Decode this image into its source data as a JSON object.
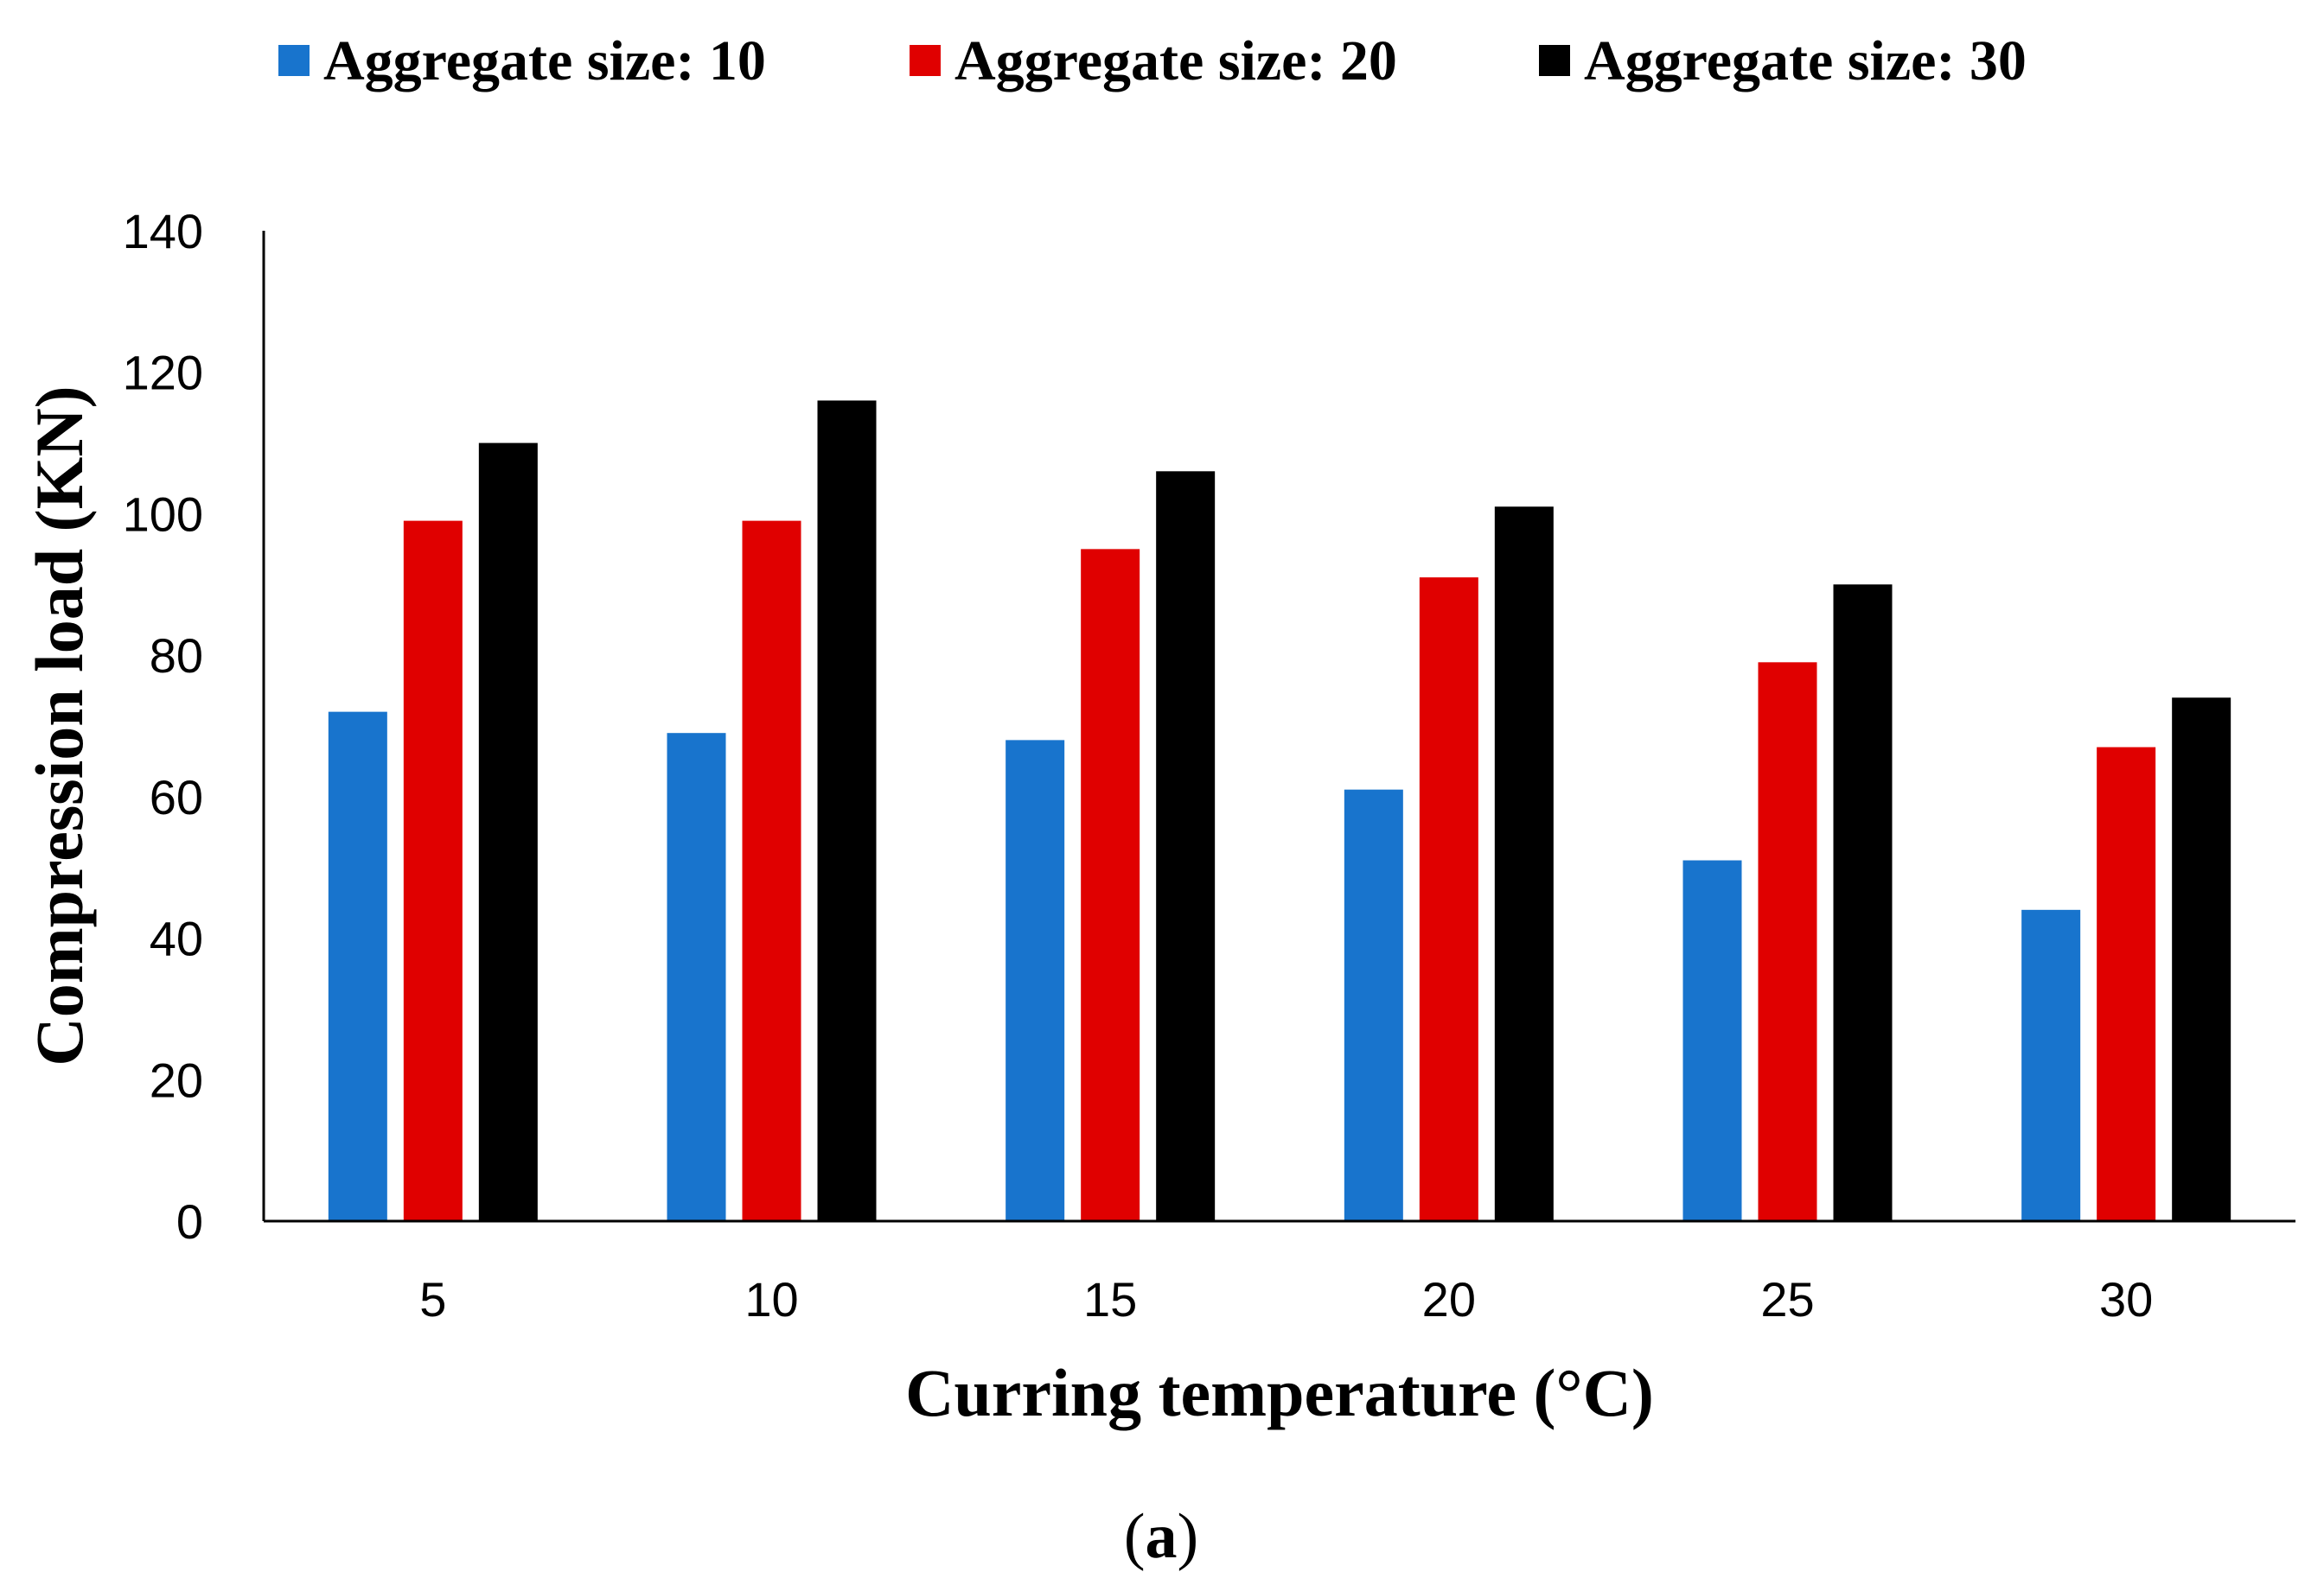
{
  "chart_data": {
    "type": "bar",
    "title": "",
    "xlabel": "Curring temperature (°C)",
    "ylabel": "Compression load (KN)",
    "categories": [
      "5",
      "10",
      "15",
      "20",
      "25",
      "30"
    ],
    "ylim": [
      0,
      140
    ],
    "yticks": [
      0,
      20,
      40,
      60,
      80,
      100,
      120,
      140
    ],
    "grid": false,
    "legend_position": "top",
    "series": [
      {
        "name": "Aggregate size: 10",
        "color": "#1874CD",
        "values": [
          72,
          69,
          68,
          61,
          51,
          44
        ]
      },
      {
        "name": "Aggregate size: 20",
        "color": "#E00000",
        "values": [
          99,
          99,
          95,
          91,
          79,
          67
        ]
      },
      {
        "name": "Aggregate size: 30",
        "color": "#000000",
        "values": [
          110,
          116,
          106,
          101,
          90,
          74
        ]
      }
    ]
  },
  "caption": {
    "open": "(",
    "letter": "a",
    "close": ")"
  }
}
